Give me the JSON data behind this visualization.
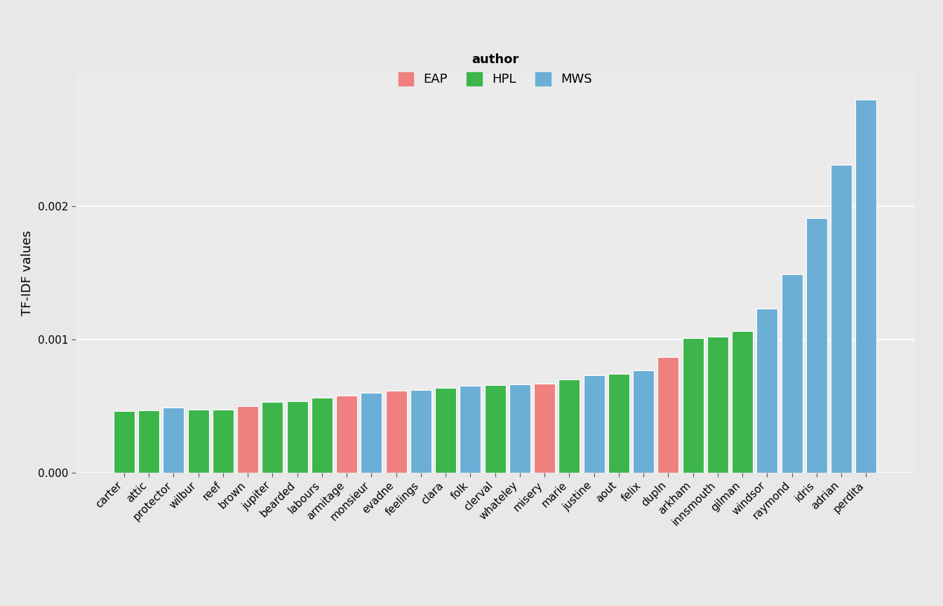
{
  "categories": [
    "carter",
    "attic",
    "protector",
    "wilbur",
    "reef",
    "brown",
    "jupiter",
    "bearded",
    "labours",
    "armitage",
    "monsieur",
    "evadne",
    "feelings",
    "clara",
    "folk",
    "clerval",
    "whateley",
    "misery",
    "marie",
    "justine",
    "aout",
    "felix",
    "dupln",
    "arkham",
    "innsmouth",
    "gilman",
    "windsor",
    "raymond",
    "idris",
    "adrian",
    "perdita"
  ],
  "values": [
    0.000465,
    0.000468,
    0.00049,
    0.000472,
    0.000472,
    0.0005,
    0.00053,
    0.000535,
    0.000565,
    0.00058,
    0.0006,
    0.000615,
    0.00062,
    0.000635,
    0.00065,
    0.000655,
    0.00066,
    0.00067,
    0.0007,
    0.00073,
    0.00074,
    0.00077,
    0.00087,
    0.00101,
    0.00102,
    0.00106,
    0.00123,
    0.00149,
    0.00191,
    0.00231,
    0.0028
  ],
  "colors": [
    "#3cb54a",
    "#3cb54a",
    "#6baed6",
    "#3cb54a",
    "#3cb54a",
    "#f08080",
    "#3cb54a",
    "#3cb54a",
    "#3cb54a",
    "#f08080",
    "#6baed6",
    "#f08080",
    "#6baed6",
    "#3cb54a",
    "#6baed6",
    "#3cb54a",
    "#6baed6",
    "#f08080",
    "#3cb54a",
    "#6baed6",
    "#3cb54a",
    "#6baed6",
    "#f08080",
    "#3cb54a",
    "#3cb54a",
    "#3cb54a",
    "#6baed6",
    "#6baed6",
    "#6baed6",
    "#6baed6",
    "#6baed6"
  ],
  "ylabel": "TF-IDF values",
  "legend_labels": [
    "EAP",
    "HPL",
    "MWS"
  ],
  "legend_colors": [
    "#f08080",
    "#3cb54a",
    "#6baed6"
  ],
  "legend_title": "author",
  "bg_color": "#e8e8e8",
  "plot_bg_color": "#ebebeb",
  "ylim": [
    0,
    0.003
  ],
  "yticks": [
    0.0,
    0.001,
    0.002
  ],
  "ytick_labels": [
    "0.000",
    "0.001",
    "0.002"
  ]
}
